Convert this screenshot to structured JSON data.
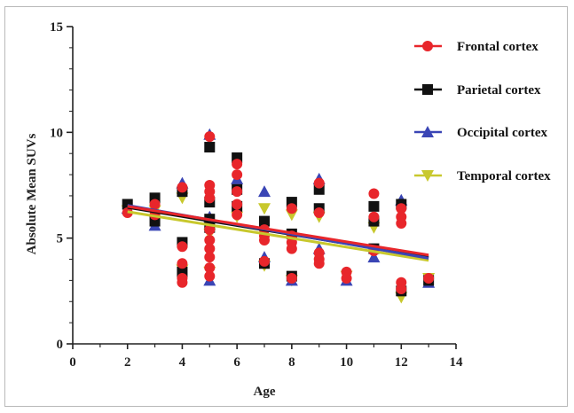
{
  "chart_data": {
    "type": "scatter",
    "xlabel": "Age",
    "ylabel": "Absolute Mean SUVs",
    "xlim": [
      0,
      14
    ],
    "ylim": [
      0,
      15
    ],
    "xticks": [
      "0",
      "2",
      "4",
      "6",
      "8",
      "10",
      "12",
      "14"
    ],
    "yticks": [
      "0",
      "5",
      "10",
      "15"
    ],
    "legend_position": "right",
    "series": [
      {
        "name": "Frontal cortex",
        "color": "#e8262b",
        "marker": "circle",
        "points": [
          [
            2,
            6.2
          ],
          [
            3,
            6.6
          ],
          [
            3,
            6.1
          ],
          [
            4,
            7.4
          ],
          [
            4,
            4.6
          ],
          [
            4,
            3.8
          ],
          [
            4,
            3.1
          ],
          [
            4,
            2.9
          ],
          [
            5,
            9.8
          ],
          [
            5,
            7.5
          ],
          [
            5,
            7.2
          ],
          [
            5,
            6.9
          ],
          [
            5,
            5.4
          ],
          [
            5,
            4.9
          ],
          [
            5,
            4.5
          ],
          [
            5,
            4.1
          ],
          [
            5,
            3.6
          ],
          [
            5,
            3.2
          ],
          [
            6,
            8.5
          ],
          [
            6,
            8.0
          ],
          [
            6,
            7.2
          ],
          [
            6,
            6.6
          ],
          [
            6,
            6.1
          ],
          [
            7,
            5.4
          ],
          [
            7,
            5.1
          ],
          [
            7,
            4.9
          ],
          [
            7,
            3.9
          ],
          [
            8,
            6.4
          ],
          [
            8,
            5.1
          ],
          [
            8,
            4.8
          ],
          [
            8,
            4.5
          ],
          [
            8,
            3.1
          ],
          [
            9,
            7.6
          ],
          [
            9,
            6.2
          ],
          [
            9,
            4.3
          ],
          [
            9,
            4.0
          ],
          [
            9,
            3.8
          ],
          [
            10,
            3.4
          ],
          [
            10,
            3.1
          ],
          [
            11,
            7.1
          ],
          [
            11,
            6.0
          ],
          [
            11,
            4.4
          ],
          [
            12,
            6.4
          ],
          [
            12,
            6.0
          ],
          [
            12,
            5.7
          ],
          [
            12,
            2.9
          ],
          [
            12,
            2.6
          ],
          [
            13,
            3.1
          ]
        ],
        "trend": [
          [
            2,
            6.5
          ],
          [
            13,
            4.2
          ]
        ]
      },
      {
        "name": "Parietal cortex",
        "color": "#111111",
        "marker": "square",
        "points": [
          [
            2,
            6.6
          ],
          [
            3,
            6.9
          ],
          [
            3,
            5.8
          ],
          [
            4,
            7.2
          ],
          [
            4,
            4.8
          ],
          [
            4,
            3.4
          ],
          [
            5,
            9.3
          ],
          [
            5,
            6.7
          ],
          [
            5,
            5.9
          ],
          [
            5,
            5.5
          ],
          [
            6,
            8.8
          ],
          [
            6,
            7.3
          ],
          [
            6,
            6.5
          ],
          [
            7,
            5.8
          ],
          [
            7,
            3.8
          ],
          [
            8,
            6.7
          ],
          [
            8,
            5.2
          ],
          [
            8,
            3.2
          ],
          [
            9,
            7.3
          ],
          [
            9,
            6.4
          ],
          [
            11,
            6.5
          ],
          [
            11,
            5.8
          ],
          [
            11,
            4.5
          ],
          [
            12,
            6.6
          ],
          [
            12,
            2.5
          ],
          [
            13,
            3.0
          ]
        ],
        "trend": [
          [
            2,
            6.45
          ],
          [
            13,
            4.1
          ]
        ]
      },
      {
        "name": "Occipital cortex",
        "color": "#3a45b5",
        "marker": "triangle-up",
        "points": [
          [
            2,
            6.4
          ],
          [
            3,
            5.6
          ],
          [
            4,
            7.6
          ],
          [
            5,
            9.9
          ],
          [
            5,
            6.0
          ],
          [
            5,
            3.0
          ],
          [
            6,
            7.8
          ],
          [
            7,
            7.2
          ],
          [
            7,
            4.1
          ],
          [
            8,
            3.0
          ],
          [
            9,
            7.8
          ],
          [
            9,
            4.5
          ],
          [
            10,
            3.0
          ],
          [
            11,
            4.1
          ],
          [
            12,
            6.8
          ],
          [
            13,
            2.9
          ]
        ],
        "trend": [
          [
            2,
            6.55
          ],
          [
            13,
            4.05
          ]
        ]
      },
      {
        "name": "Temporal cortex",
        "color": "#c8c82d",
        "marker": "triangle-down",
        "points": [
          [
            2,
            6.3
          ],
          [
            3,
            6.3
          ],
          [
            4,
            6.9
          ],
          [
            4,
            3.5
          ],
          [
            5,
            5.2
          ],
          [
            5,
            3.4
          ],
          [
            6,
            6.0
          ],
          [
            7,
            6.4
          ],
          [
            7,
            3.7
          ],
          [
            8,
            6.1
          ],
          [
            8,
            3.0
          ],
          [
            9,
            6.0
          ],
          [
            10,
            3.2
          ],
          [
            11,
            5.5
          ],
          [
            12,
            2.2
          ],
          [
            13,
            3.1
          ]
        ],
        "trend": [
          [
            2,
            6.25
          ],
          [
            13,
            3.95
          ]
        ]
      }
    ]
  }
}
